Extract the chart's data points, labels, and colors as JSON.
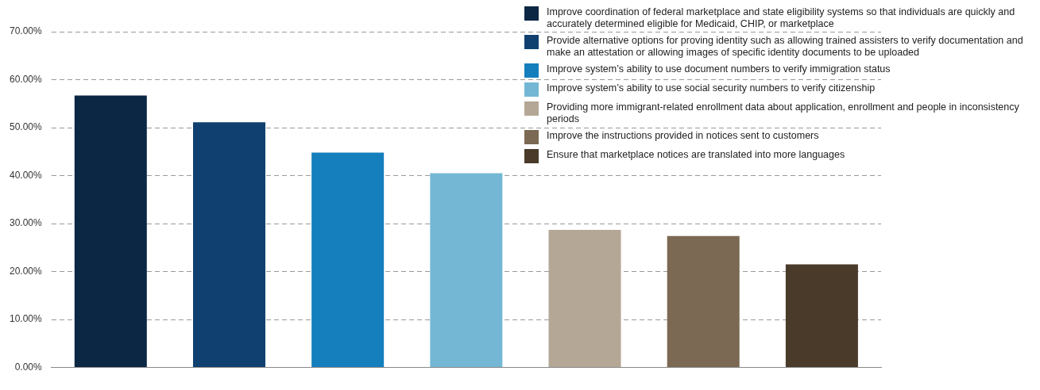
{
  "chart_data": {
    "type": "bar",
    "categories": [
      null,
      null,
      null,
      null,
      null,
      null,
      null
    ],
    "series": [
      {
        "name": "Improve coordination of federal marketplace and state eligibility systems so that individuals are quickly and accurately determined eligible for Medicaid, CHIP, or marketplace",
        "color": "#0b2744",
        "values": [
          56.7,
          null,
          null,
          null,
          null,
          null,
          null
        ]
      },
      {
        "name": "Provide alternative options for proving identity such as allowing trained assisters to verify documentation and make an attestation or allowing images of specific identity documents to be uploaded",
        "color": "#0f406f",
        "values": [
          null,
          51.1,
          null,
          null,
          null,
          null,
          null
        ]
      },
      {
        "name": "Improve system’s ability to use document numbers to verify immigration status",
        "color": "#147fbc",
        "values": [
          null,
          null,
          44.8,
          null,
          null,
          null,
          null
        ]
      },
      {
        "name": "Improve system’s ability to use social security numbers to verify citizenship",
        "color": "#73b7d5",
        "values": [
          null,
          null,
          null,
          40.5,
          null,
          null,
          null
        ]
      },
      {
        "name": "Providing more immigrant-related enrollment data about application, enrollment and people in inconsistency periods",
        "color": "#b4a796",
        "values": [
          null,
          null,
          null,
          null,
          28.7,
          null,
          null
        ]
      },
      {
        "name": "Improve the instructions provided in notices sent to customers",
        "color": "#7b6953",
        "values": [
          null,
          null,
          null,
          null,
          null,
          27.4,
          null
        ]
      },
      {
        "name": "Ensure that marketplace notices are translated into more languages",
        "color": "#4a3a2a",
        "values": [
          null,
          null,
          null,
          null,
          null,
          null,
          21.5
        ]
      }
    ],
    "ylim": [
      0,
      70
    ],
    "yticks": [
      {
        "value": 0,
        "label": "0.00%"
      },
      {
        "value": 10,
        "label": "10.00%"
      },
      {
        "value": 20,
        "label": "20.00%"
      },
      {
        "value": 30,
        "label": "30.00%"
      },
      {
        "value": 40,
        "label": "40.00%"
      },
      {
        "value": 50,
        "label": "50.00%"
      },
      {
        "value": 60,
        "label": "60.00%"
      },
      {
        "value": 70,
        "label": "70.00%"
      }
    ],
    "grid": "y",
    "legend": "top right"
  }
}
